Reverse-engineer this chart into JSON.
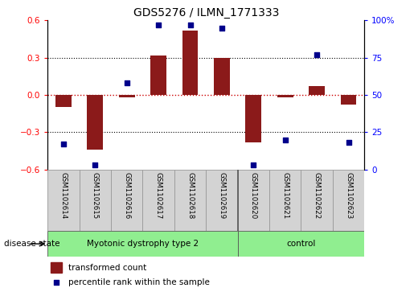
{
  "title": "GDS5276 / ILMN_1771333",
  "samples": [
    "GSM1102614",
    "GSM1102615",
    "GSM1102616",
    "GSM1102617",
    "GSM1102618",
    "GSM1102619",
    "GSM1102620",
    "GSM1102621",
    "GSM1102622",
    "GSM1102623"
  ],
  "transformed_count": [
    -0.1,
    -0.44,
    -0.02,
    0.32,
    0.52,
    0.3,
    -0.38,
    -0.02,
    0.07,
    -0.08
  ],
  "percentile_rank": [
    17,
    3,
    58,
    97,
    97,
    95,
    3,
    20,
    77,
    18
  ],
  "groups": [
    {
      "label": "Myotonic dystrophy type 2",
      "start": 0,
      "end": 6,
      "color": "#90EE90"
    },
    {
      "label": "control",
      "start": 6,
      "end": 10,
      "color": "#90EE90"
    }
  ],
  "ylim_left": [
    -0.6,
    0.6
  ],
  "ylim_right": [
    0,
    100
  ],
  "yticks_left": [
    -0.6,
    -0.3,
    0.0,
    0.3,
    0.6
  ],
  "yticks_right": [
    0,
    25,
    50,
    75,
    100
  ],
  "yticklabels_right": [
    "0",
    "25",
    "50",
    "75",
    "100%"
  ],
  "bar_color": "#8B1A1A",
  "dot_color": "#00008B",
  "background_color": "#ffffff",
  "zero_line_color": "#cc0000",
  "box_color": "#d3d3d3",
  "group_divider": 6
}
